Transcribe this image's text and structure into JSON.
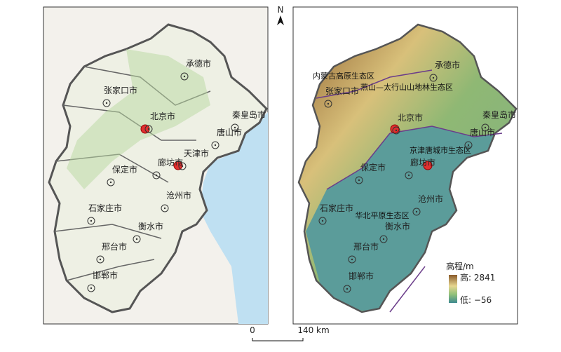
{
  "north": "N",
  "left_map": {
    "cities": [
      "承德市",
      "张家口市",
      "北京市",
      "秦皇岛市",
      "唐山市",
      "天津市",
      "廊坊市",
      "保定市",
      "沧州市",
      "石家庄市",
      "衡水市",
      "邢台市",
      "邯郸市"
    ]
  },
  "right_map": {
    "cities": [
      "承德市",
      "张家口市",
      "北京市",
      "秦皇岛市",
      "唐山市",
      "廊坊市",
      "保定市",
      "沧州市",
      "石家庄市",
      "衡水市",
      "邢台市",
      "邯郸市"
    ],
    "regions": [
      "内蒙古高原生态区",
      "燕山—太行山山地林生态区",
      "京津唐城市生态区",
      "华北平原生态区"
    ],
    "legend": {
      "title": "高程/m",
      "high": "高: 2841",
      "low": "低: −56"
    }
  },
  "scale_bar": {
    "start": "0",
    "end": "140 km"
  }
}
